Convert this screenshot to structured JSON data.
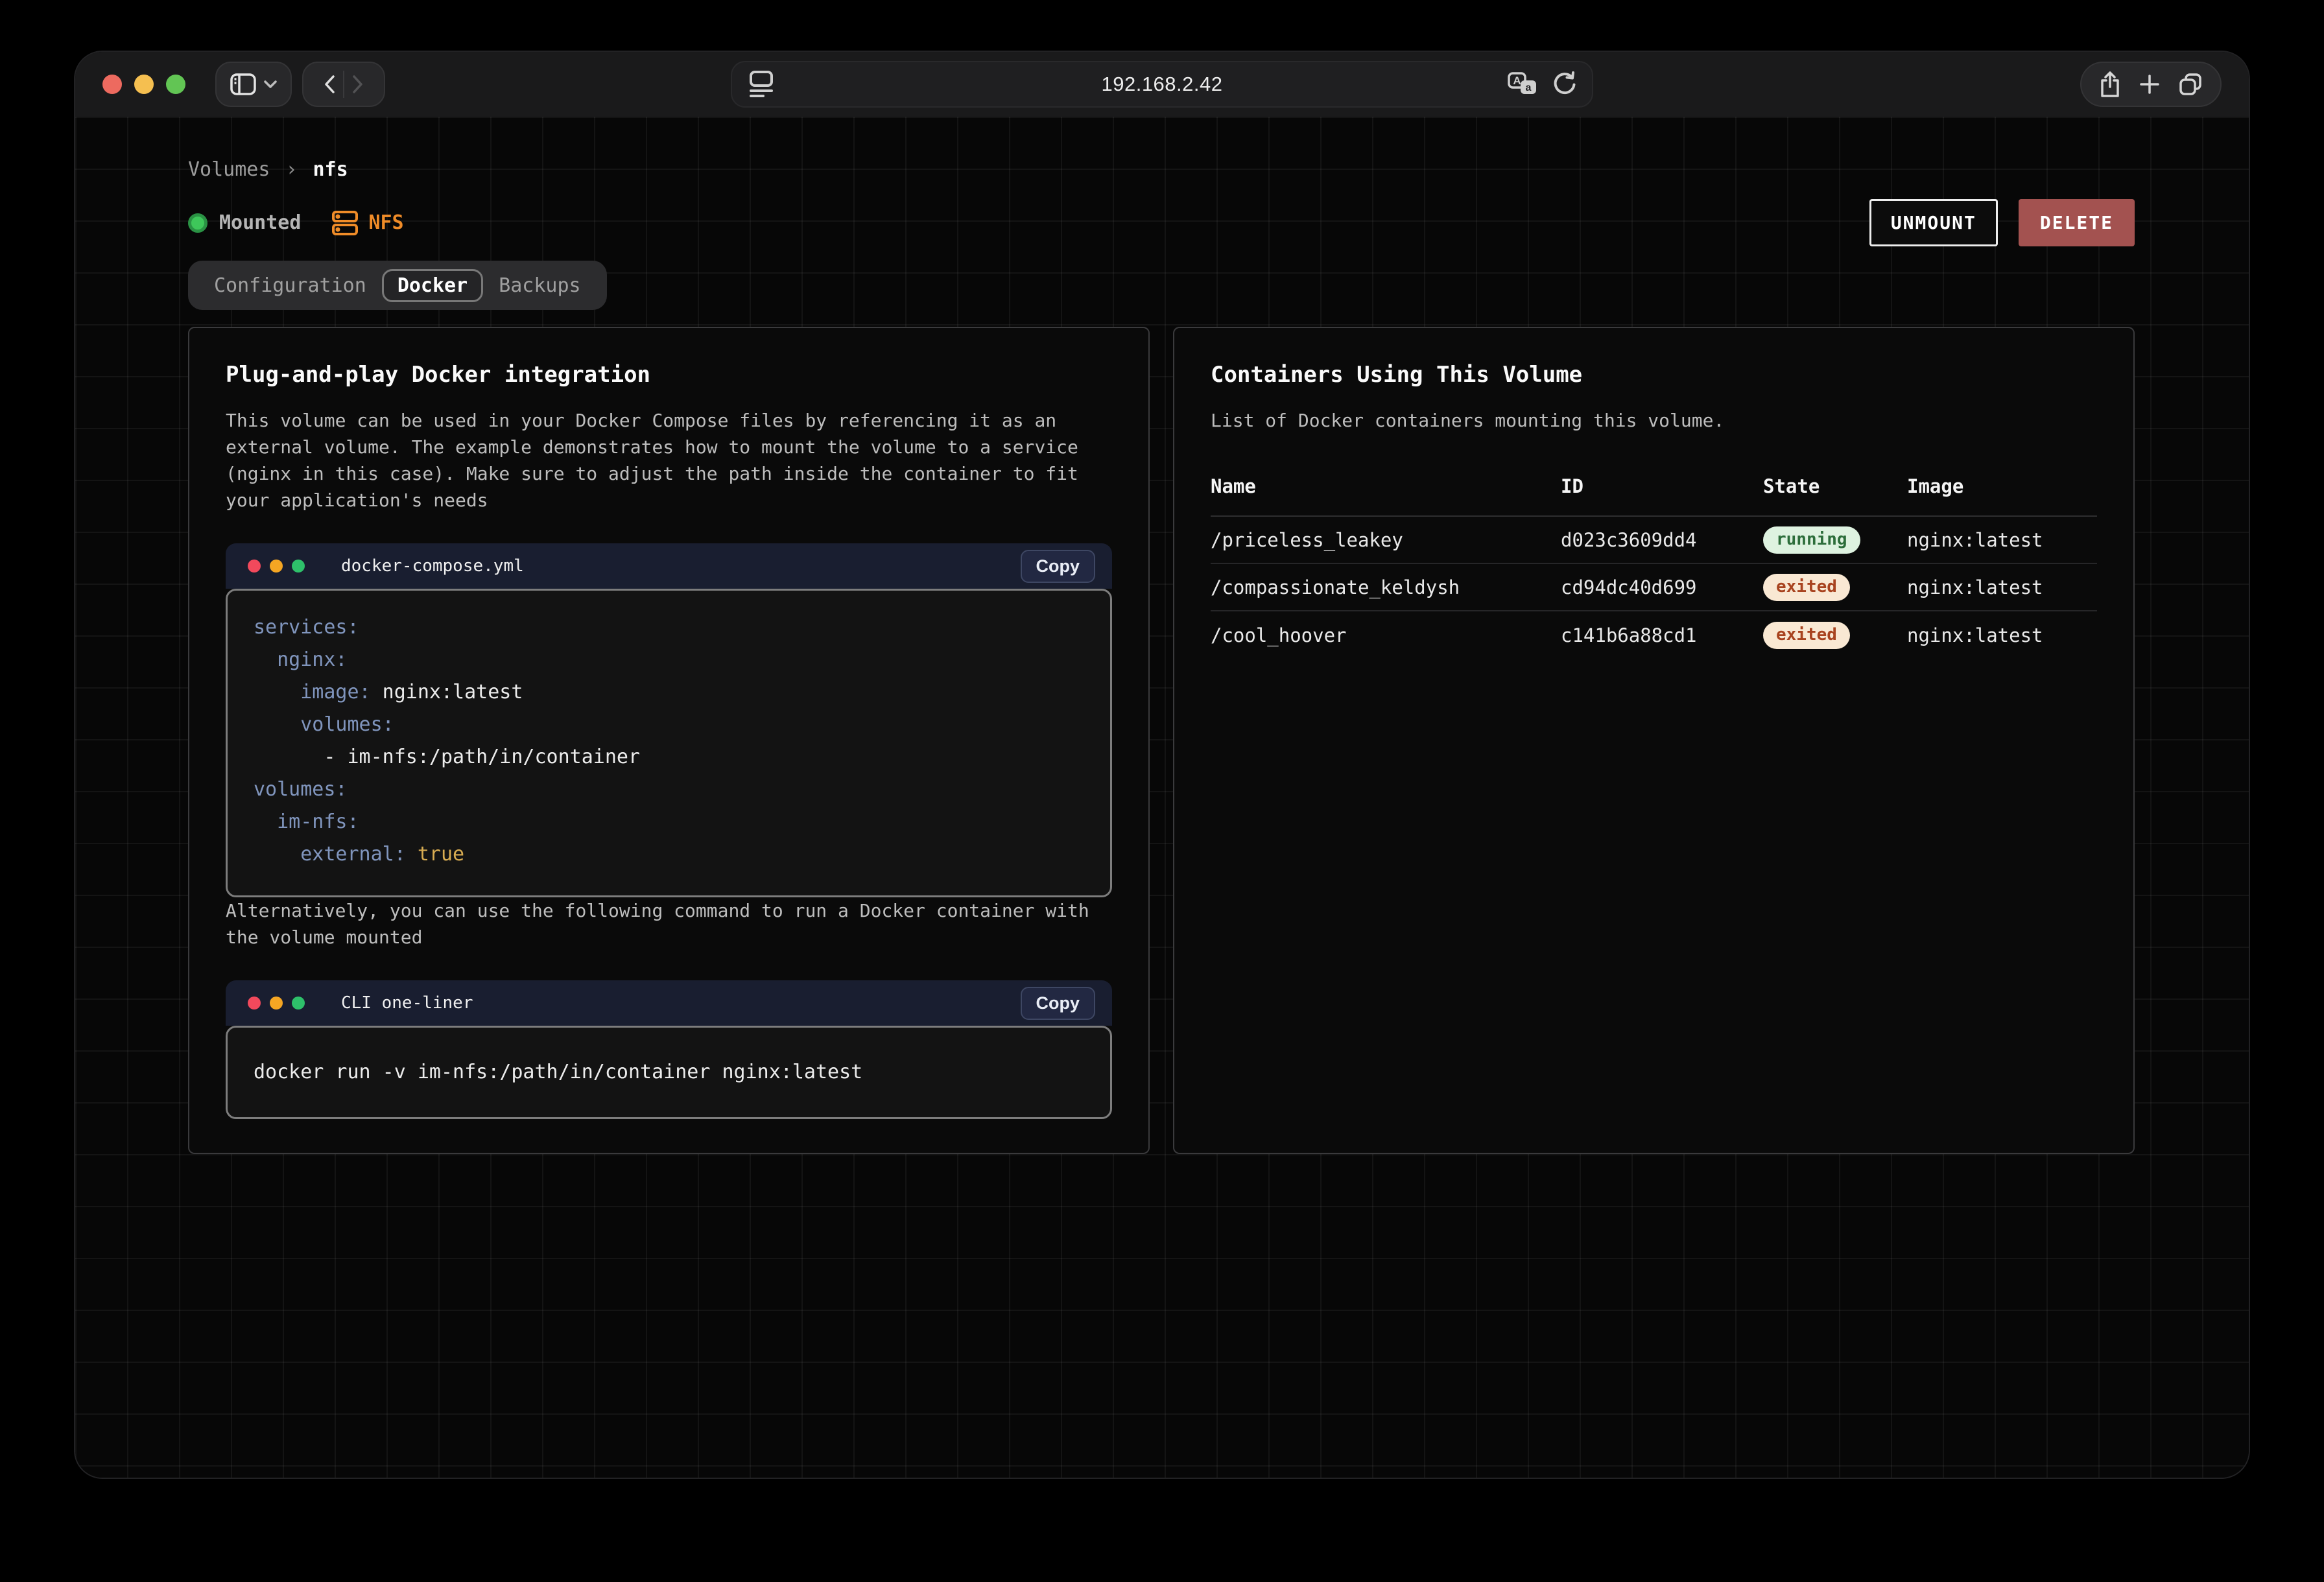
{
  "browser": {
    "url": "192.168.2.42",
    "traffic_lights": [
      "close",
      "minimize",
      "zoom"
    ],
    "colors": {
      "close": "#ed6a5f",
      "minimize": "#f5bf50",
      "zoom": "#62c554"
    }
  },
  "page": {
    "breadcrumb": {
      "parent": "Volumes",
      "separator": "›",
      "current": "nfs"
    },
    "status": {
      "mounted_label": "Mounted",
      "type_label": "NFS"
    },
    "actions": {
      "unmount_label": "UNMOUNT",
      "delete_label": "DELETE"
    },
    "tabs": [
      {
        "label": "Configuration",
        "active": false
      },
      {
        "label": "Docker",
        "active": true
      },
      {
        "label": "Backups",
        "active": false
      }
    ],
    "docker_panel": {
      "title": "Plug-and-play Docker integration",
      "description": "This volume can be used in your Docker Compose files by referencing it as an external volume. The example demonstrates how to mount the volume to a service (nginx in this case). Make sure to adjust the path inside the container to fit your application's needs",
      "compose_block": {
        "filename": "docker-compose.yml",
        "copy_label": "Copy",
        "lines": [
          [
            {
              "type": "key",
              "text": "services:"
            }
          ],
          [
            {
              "type": "text",
              "text": "  "
            },
            {
              "type": "key",
              "text": "nginx:"
            }
          ],
          [
            {
              "type": "text",
              "text": "    "
            },
            {
              "type": "key",
              "text": "image:"
            },
            {
              "type": "text",
              "text": " nginx:latest"
            }
          ],
          [
            {
              "type": "text",
              "text": "    "
            },
            {
              "type": "key",
              "text": "volumes:"
            }
          ],
          [
            {
              "type": "text",
              "text": "      - im-nfs:/path/in/container"
            }
          ],
          [
            {
              "type": "key",
              "text": "volumes:"
            }
          ],
          [
            {
              "type": "text",
              "text": "  "
            },
            {
              "type": "key",
              "text": "im-nfs:"
            }
          ],
          [
            {
              "type": "text",
              "text": "    "
            },
            {
              "type": "key",
              "text": "external:"
            },
            {
              "type": "text",
              "text": " "
            },
            {
              "type": "bool",
              "text": "true"
            }
          ]
        ]
      },
      "alt_text": "Alternatively, you can use the following command to run a Docker container with the volume mounted",
      "cli_block": {
        "filename": "CLI one-liner",
        "copy_label": "Copy",
        "command": "docker run -v im-nfs:/path/in/container nginx:latest"
      }
    },
    "containers_panel": {
      "title": "Containers Using This Volume",
      "subtitle": "List of Docker containers mounting this volume.",
      "table": {
        "headers": [
          "Name",
          "ID",
          "State",
          "Image"
        ],
        "rows": [
          {
            "name": "/priceless_leakey",
            "id": "d023c3609dd4",
            "state": "running",
            "image": "nginx:latest"
          },
          {
            "name": "/compassionate_keldysh",
            "id": "cd94dc40d699",
            "state": "exited",
            "image": "nginx:latest"
          },
          {
            "name": "/cool_hoover",
            "id": "c141b6a88cd1",
            "state": "exited",
            "image": "nginx:latest"
          }
        ]
      }
    },
    "colors": {
      "accent_orange": "#f08c28",
      "delete_red": "#a35250",
      "badge_running_bg": "#def2e0",
      "badge_running_text": "#2c6d3a",
      "badge_exited_bg": "#f9e8d3",
      "badge_exited_text": "#a8431f",
      "code_key": "#8095bd",
      "code_bool": "#d8ac52",
      "code_header_bg": "#191e30"
    }
  }
}
